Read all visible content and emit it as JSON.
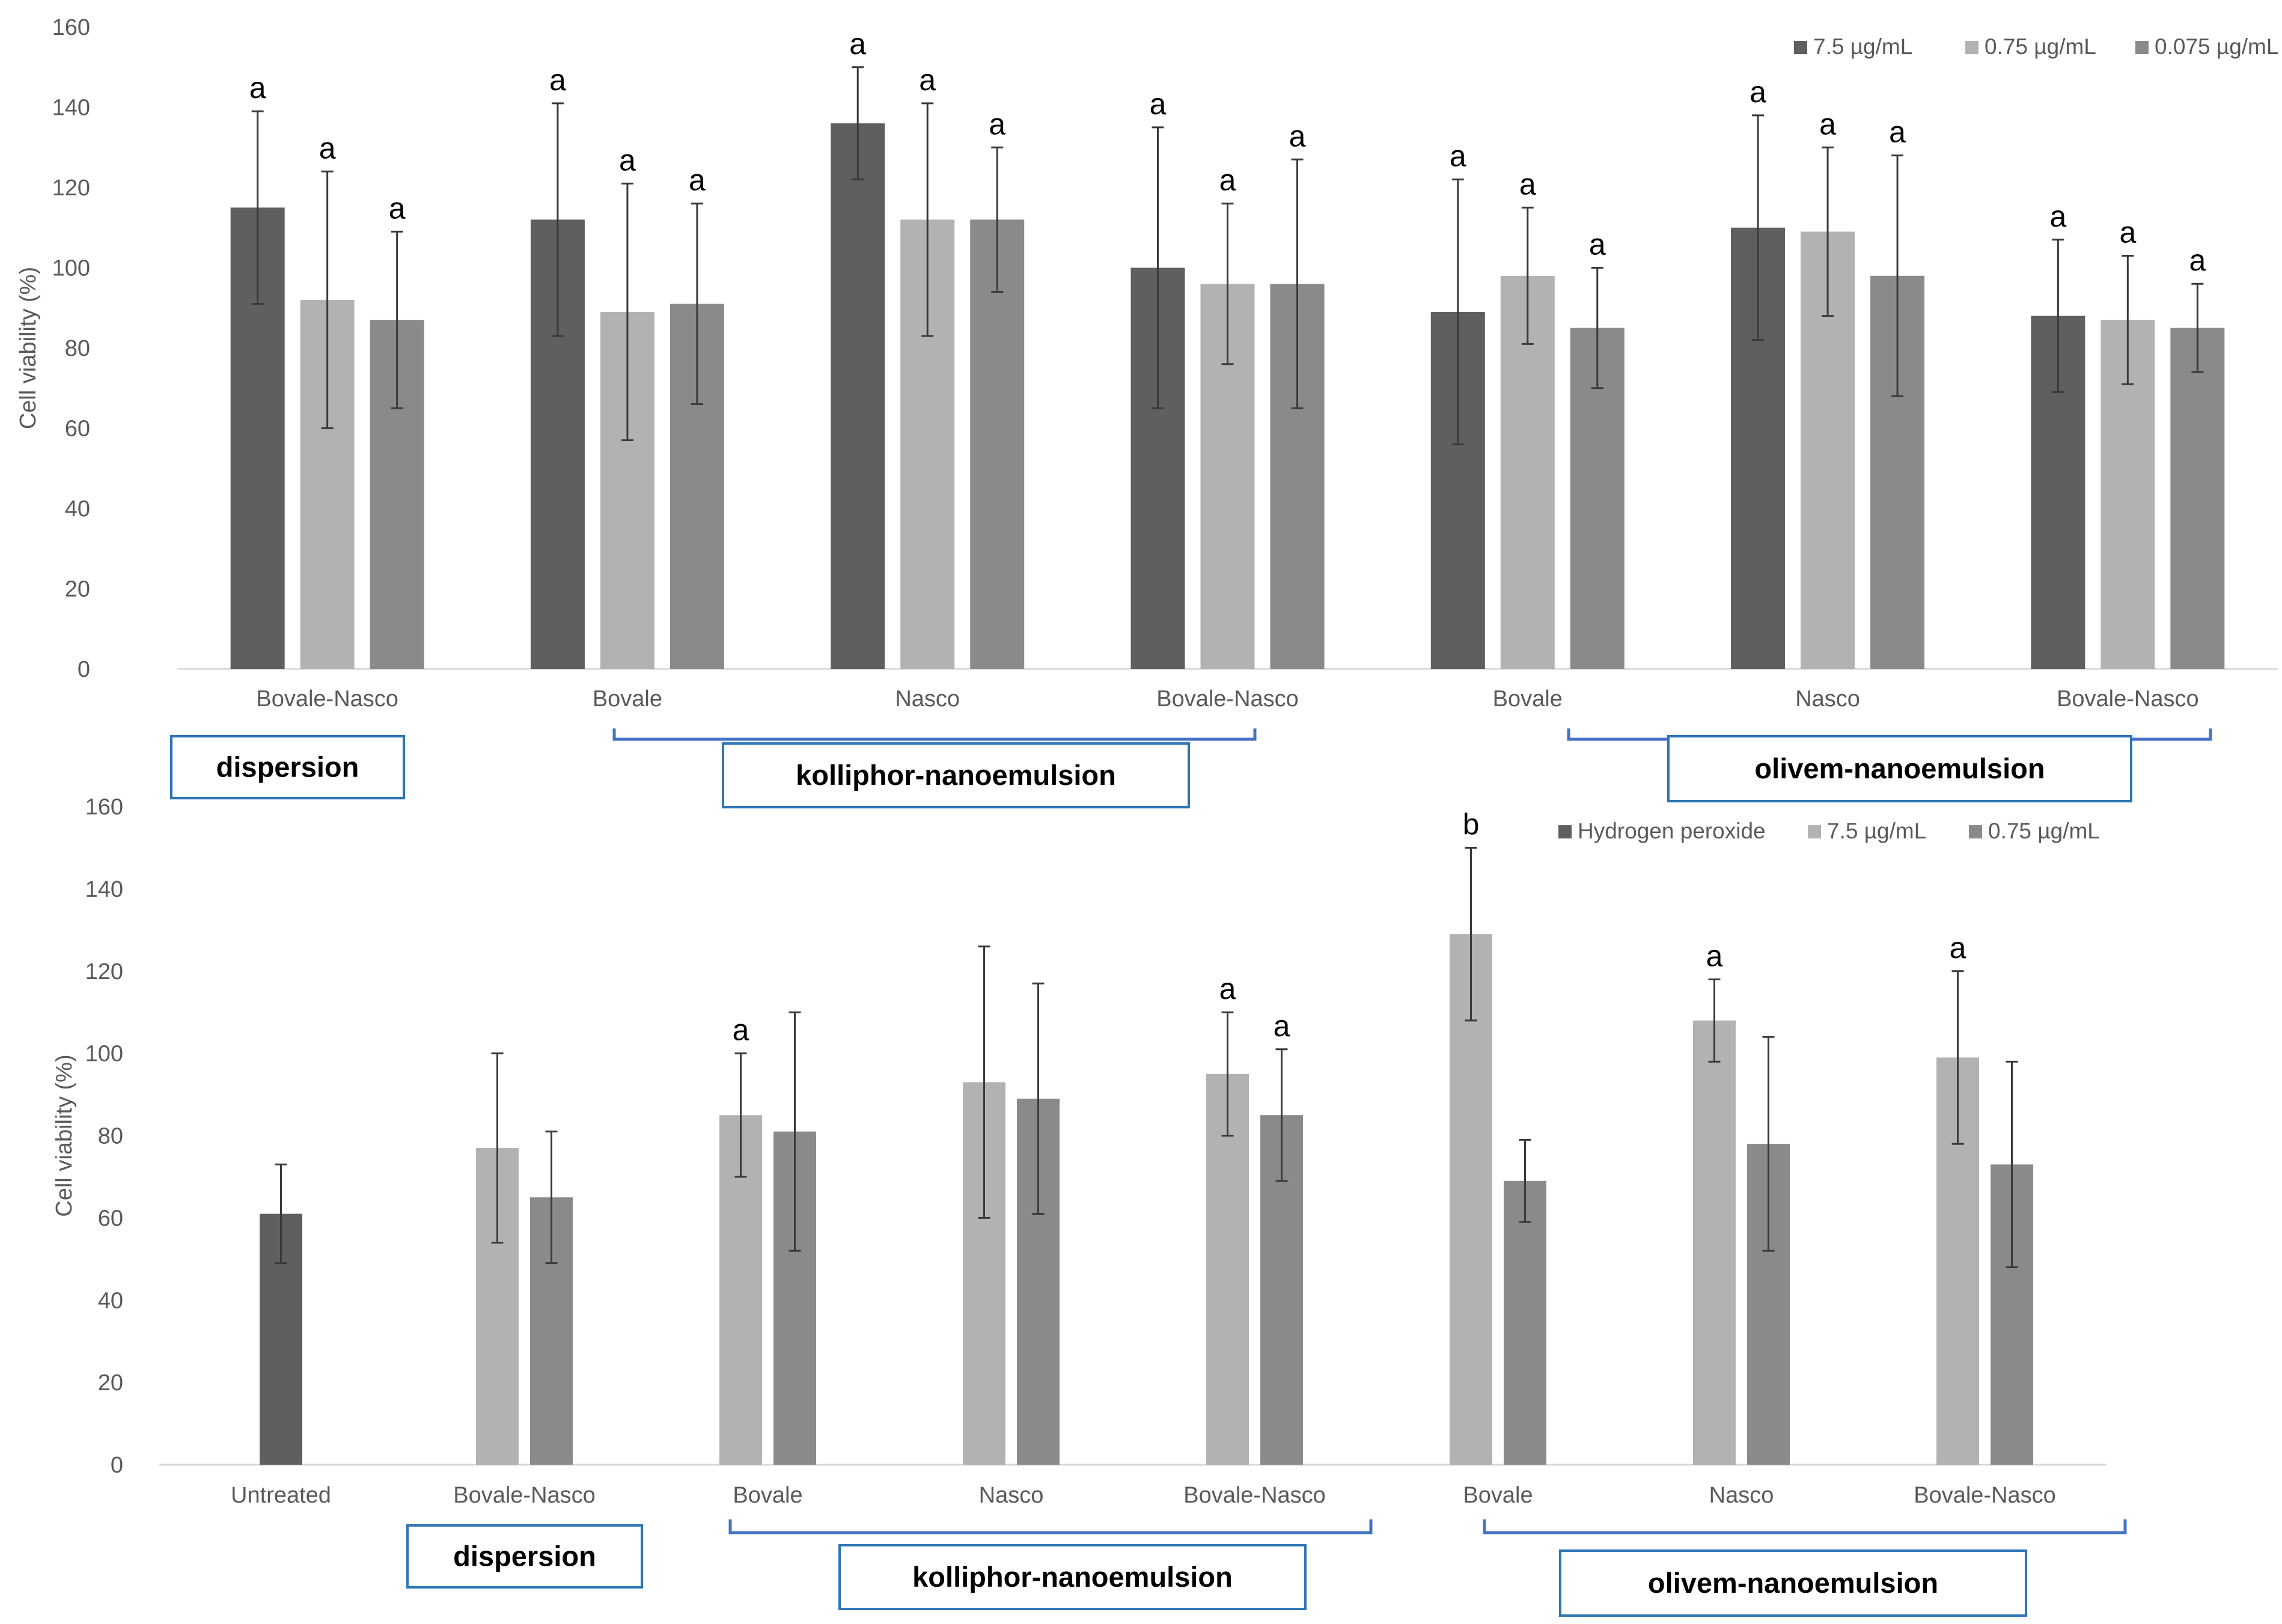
{
  "chart_data": [
    {
      "type": "bar",
      "ylabel": "Cell viability (%)",
      "ylim": [
        0,
        160
      ],
      "yticks": [
        0,
        20,
        40,
        60,
        80,
        100,
        120,
        140,
        160
      ],
      "categories": [
        "Bovale-Nasco",
        "Bovale",
        "Nasco",
        "Bovale-Nasco",
        "Bovale",
        "Nasco",
        "Bovale-Nasco"
      ],
      "legend_position": "top-right",
      "series": [
        {
          "name": "7.5 µg/mL",
          "color": "#5f5f5f",
          "values": [
            115,
            112,
            136,
            100,
            89,
            110,
            88
          ],
          "errors": [
            24,
            29,
            14,
            35,
            33,
            28,
            19
          ],
          "labels": [
            "a",
            "a",
            "a",
            "a",
            "a",
            "a",
            "a"
          ]
        },
        {
          "name": "0.75 µg/mL",
          "color": "#b2b2b2",
          "values": [
            92,
            89,
            112,
            96,
            98,
            109,
            87
          ],
          "errors": [
            32,
            32,
            29,
            20,
            17,
            21,
            16
          ],
          "labels": [
            "a",
            "a",
            "a",
            "a",
            "a",
            "a",
            "a"
          ]
        },
        {
          "name": "0.075 µg/mL",
          "color": "#8a8a8a",
          "values": [
            87,
            91,
            112,
            96,
            85,
            98,
            85
          ],
          "errors": [
            22,
            25,
            18,
            31,
            15,
            30,
            11
          ],
          "labels": [
            "a",
            "a",
            "a",
            "a",
            "a",
            "a",
            "a"
          ]
        }
      ],
      "group_labels": [
        {
          "text": "dispersion",
          "from": 0,
          "to": 0,
          "bracket": false
        },
        {
          "text": "kolliphor-nanoemulsion",
          "from": 1,
          "to": 3,
          "bracket": true
        },
        {
          "text": "olivem-nanoemulsion",
          "from": 4,
          "to": 6,
          "bracket": true
        }
      ]
    },
    {
      "type": "bar",
      "ylabel": "Cell viability (%)",
      "ylim": [
        0,
        160
      ],
      "yticks": [
        0,
        20,
        40,
        60,
        80,
        100,
        120,
        140,
        160
      ],
      "categories": [
        "Untreated",
        "Bovale-Nasco",
        "Bovale",
        "Nasco",
        "Bovale-Nasco",
        "Bovale",
        "Nasco",
        "Bovale-Nasco"
      ],
      "legend_position": "top-right",
      "series": [
        {
          "name": "Hydrogen peroxide",
          "color": "#5f5f5f",
          "values": [
            61,
            null,
            null,
            null,
            null,
            null,
            null,
            null
          ],
          "errors": [
            12,
            null,
            null,
            null,
            null,
            null,
            null,
            null
          ],
          "labels": [
            "",
            "",
            "",
            "",
            "",
            "",
            "",
            ""
          ]
        },
        {
          "name": "7.5 µg/mL",
          "color": "#b2b2b2",
          "values": [
            null,
            77,
            85,
            93,
            95,
            129,
            108,
            99
          ],
          "errors": [
            null,
            23,
            15,
            33,
            15,
            21,
            10,
            21
          ],
          "labels": [
            "",
            "",
            "a",
            "",
            "a",
            "b",
            "a",
            "a"
          ]
        },
        {
          "name": "0.75 µg/mL",
          "color": "#8a8a8a",
          "values": [
            null,
            65,
            81,
            89,
            85,
            69,
            78,
            73
          ],
          "errors": [
            null,
            16,
            29,
            28,
            16,
            10,
            26,
            25
          ],
          "labels": [
            "",
            "",
            "",
            "",
            "a",
            "",
            "",
            ""
          ]
        }
      ],
      "group_labels": [
        {
          "text": "dispersion",
          "from": 1,
          "to": 1,
          "bracket": false
        },
        {
          "text": "kolliphor-nanoemulsion",
          "from": 2,
          "to": 4,
          "bracket": true
        },
        {
          "text": "olivem-nanoemulsion",
          "from": 5,
          "to": 7,
          "bracket": true
        }
      ]
    }
  ]
}
